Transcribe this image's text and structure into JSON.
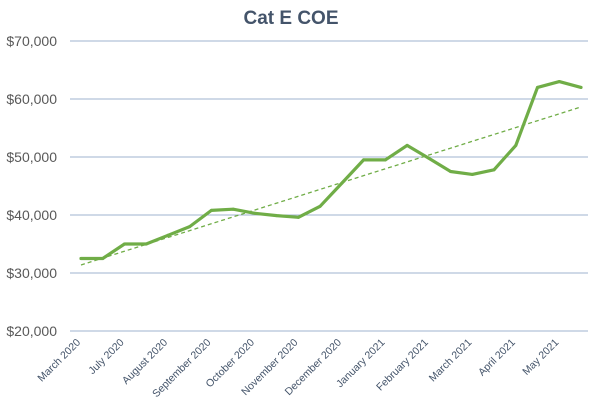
{
  "chart_data": {
    "type": "line",
    "title": "Cat E COE",
    "xlabel": "",
    "ylabel": "",
    "ylim": [
      20000,
      70000
    ],
    "yticks": [
      20000,
      30000,
      40000,
      50000,
      60000,
      70000
    ],
    "ytick_labels": [
      "$20,000",
      "$30,000",
      "$40,000",
      "$50,000",
      "$60,000",
      "$70,000"
    ],
    "x_labels": [
      "March 2020",
      "July 2020",
      "August 2020",
      "September 2020",
      "October 2020",
      "November 2020",
      "December 2020",
      "January 2021",
      "February 2021",
      "March 2021",
      "April 2021",
      "May 2021"
    ],
    "x_label_positions": [
      0,
      2,
      4,
      6,
      8,
      10,
      12,
      14,
      16,
      18,
      20,
      22
    ],
    "grid": true,
    "legend": "none",
    "series": [
      {
        "values": [
          32500,
          32500,
          35000,
          35000,
          36500,
          38000,
          40800,
          41000,
          40300,
          39900,
          39600,
          41500,
          45500,
          49500,
          49500,
          52000,
          49800,
          47500,
          47000,
          47800,
          52000,
          62000,
          63000,
          62000
        ],
        "color": "#70ad47",
        "style": "solid"
      }
    ],
    "trendline": {
      "type": "linear",
      "color": "#70ad47",
      "style": "dashed"
    }
  }
}
